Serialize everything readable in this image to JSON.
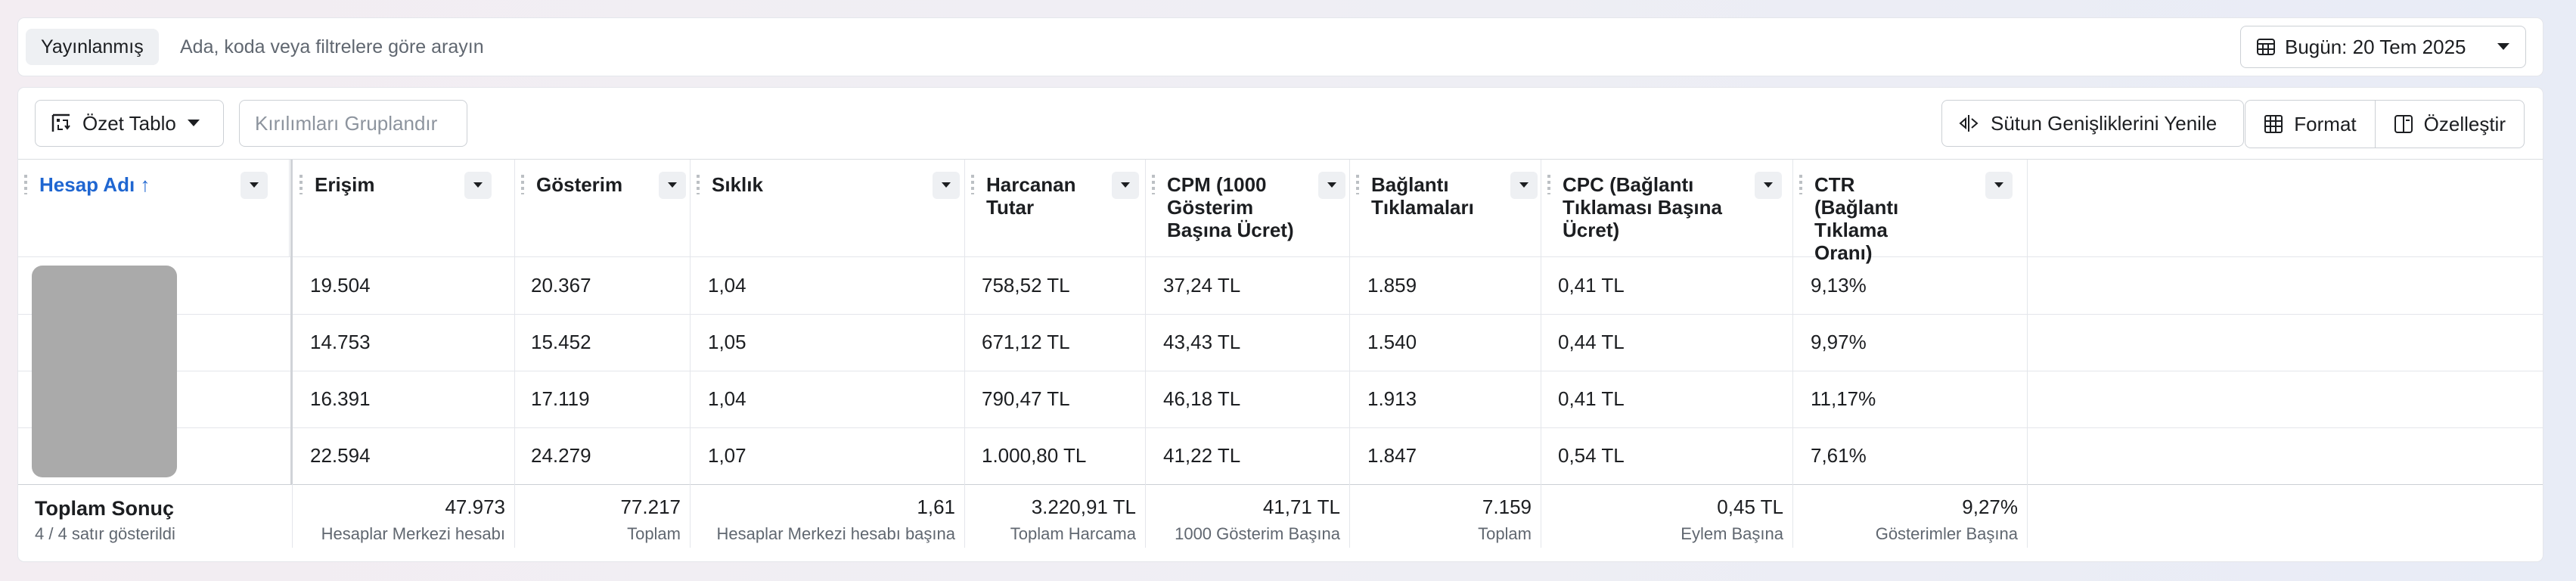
{
  "topbar": {
    "status_chip": "Yayınlanmış",
    "search_placeholder": "Ada, koda veya filtrelere göre arayın",
    "date_label": "Bugün: 20 Tem 2025"
  },
  "toolbar": {
    "summary_label": "Özet Tablo",
    "group_breakdowns_label": "Kırılımları Gruplandır",
    "reset_widths_label": "Sütun Genişliklerini Yenile",
    "format_label": "Format",
    "customize_label": "Özelleştir"
  },
  "columns": [
    {
      "label": "Hesap Adı ↑",
      "sorted": true
    },
    {
      "label": "Erişim"
    },
    {
      "label": "Gösterim"
    },
    {
      "label": "Sıklık"
    },
    {
      "label": "Harcanan Tutar"
    },
    {
      "label": "CPM (1000 Gösterim Başına Ücret)"
    },
    {
      "label": "Bağlantı Tıklamaları"
    },
    {
      "label": "CPC (Bağlantı Tıklaması Başına Ücret)"
    },
    {
      "label": "CTR (Bağlantı Tıklama Oranı)"
    }
  ],
  "rows": [
    [
      "19.504",
      "20.367",
      "1,04",
      "758,52 TL",
      "37,24 TL",
      "1.859",
      "0,41 TL",
      "9,13%"
    ],
    [
      "14.753",
      "15.452",
      "1,05",
      "671,12 TL",
      "43,43 TL",
      "1.540",
      "0,44 TL",
      "9,97%"
    ],
    [
      "16.391",
      "17.119",
      "1,04",
      "790,47 TL",
      "46,18 TL",
      "1.913",
      "0,41 TL",
      "11,17%"
    ],
    [
      "22.594",
      "24.279",
      "1,07",
      "1.000,80 TL",
      "41,22 TL",
      "1.847",
      "0,54 TL",
      "7,61%"
    ]
  ],
  "totals": {
    "title": "Toplam Sonuç",
    "subtitle": "4 / 4 satır gösterildi",
    "values": [
      "47.973",
      "77.217",
      "1,61",
      "3.220,91 TL",
      "41,71 TL",
      "7.159",
      "0,45 TL",
      "9,27%"
    ],
    "captions": [
      "Hesaplar Merkezi hesabı",
      "Toplam",
      "Hesaplar Merkezi hesabı başına",
      "Toplam Harcama",
      "1000 Gösterim Başına",
      "Toplam",
      "Eylem Başına",
      "Gösterimler Başına"
    ]
  },
  "colors": {
    "accent": "#1f66d1",
    "avatar": "#aaaaaa"
  }
}
